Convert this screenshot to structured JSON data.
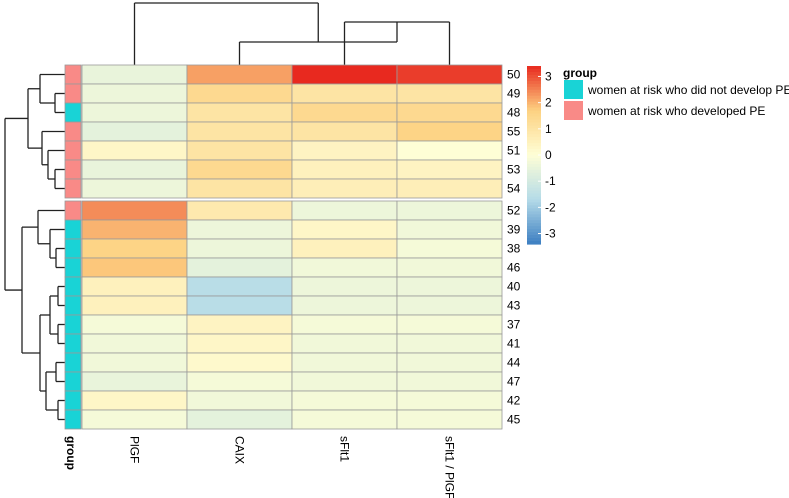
{
  "chart_data": {
    "type": "heatmap",
    "columns": [
      "PlGF",
      "CAIX",
      "sFlt1",
      "sFlt1 / PlGF"
    ],
    "row_clusters": [
      {
        "rows": [
          {
            "id": "50",
            "group": "pe",
            "values": [
              -0.5,
              2.2,
              3.4,
              3.2
            ]
          },
          {
            "id": "49",
            "group": "pe",
            "values": [
              -0.4,
              1.4,
              1.0,
              1.0
            ]
          },
          {
            "id": "48",
            "group": "no_pe",
            "values": [
              -0.4,
              1.0,
              1.4,
              1.4
            ]
          },
          {
            "id": "55",
            "group": "pe",
            "values": [
              -0.6,
              1.0,
              1.0,
              1.6
            ]
          },
          {
            "id": "51",
            "group": "pe",
            "values": [
              0.3,
              1.0,
              0.4,
              0.0
            ]
          },
          {
            "id": "53",
            "group": "pe",
            "values": [
              -0.5,
              1.4,
              0.5,
              0.4
            ]
          },
          {
            "id": "54",
            "group": "pe",
            "values": [
              -0.4,
              1.0,
              0.6,
              0.6
            ]
          }
        ]
      },
      {
        "rows": [
          {
            "id": "52",
            "group": "pe",
            "values": [
              2.4,
              0.8,
              -0.4,
              -0.4
            ]
          },
          {
            "id": "39",
            "group": "no_pe",
            "values": [
              2.0,
              -0.4,
              0.3,
              -0.3
            ]
          },
          {
            "id": "38",
            "group": "no_pe",
            "values": [
              1.6,
              -0.4,
              0.5,
              -0.2
            ]
          },
          {
            "id": "46",
            "group": "no_pe",
            "values": [
              1.8,
              -0.6,
              -0.3,
              -0.3
            ]
          },
          {
            "id": "40",
            "group": "no_pe",
            "values": [
              0.5,
              -1.6,
              -0.4,
              -0.4
            ]
          },
          {
            "id": "43",
            "group": "no_pe",
            "values": [
              0.5,
              -1.6,
              -0.4,
              -0.4
            ]
          },
          {
            "id": "37",
            "group": "no_pe",
            "values": [
              -0.2,
              0.4,
              -0.2,
              -0.2
            ]
          },
          {
            "id": "41",
            "group": "no_pe",
            "values": [
              -0.3,
              0.3,
              -0.3,
              -0.3
            ]
          },
          {
            "id": "44",
            "group": "no_pe",
            "values": [
              -0.3,
              0.2,
              -0.3,
              -0.3
            ]
          },
          {
            "id": "47",
            "group": "no_pe",
            "values": [
              -0.5,
              -0.2,
              -0.3,
              -0.3
            ]
          },
          {
            "id": "42",
            "group": "no_pe",
            "values": [
              0.3,
              -0.3,
              -0.2,
              -0.2
            ]
          },
          {
            "id": "45",
            "group": "no_pe",
            "values": [
              -0.2,
              -0.6,
              -0.2,
              -0.2
            ]
          }
        ]
      }
    ],
    "color_scale": {
      "min": -3.4,
      "max": 3.4,
      "ticks": [
        3,
        2,
        1,
        0,
        -1,
        -2,
        -3
      ],
      "colors": [
        "#3d7fc2",
        "#b5dbe8",
        "#fefed6",
        "#fdd181",
        "#e8291f"
      ]
    },
    "annotation": {
      "row_label": "group",
      "legend_title": "group",
      "categories": [
        {
          "key": "no_pe",
          "label": "women at risk who did not develop PE",
          "color": "#19d3d6"
        },
        {
          "key": "pe",
          "label": "women at risk who developed PE",
          "color": "#f98a87"
        }
      ]
    }
  }
}
